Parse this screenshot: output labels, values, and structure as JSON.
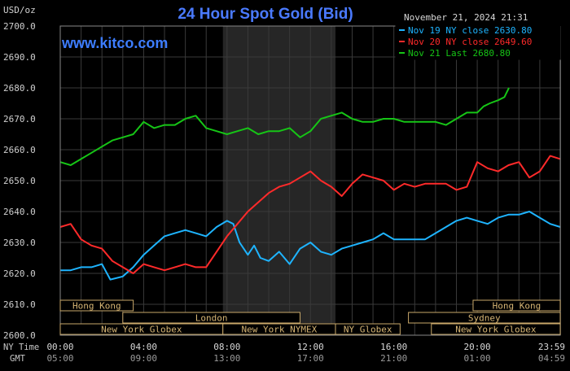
{
  "chart_data": {
    "type": "line",
    "title": "24 Hour Spot Gold (Bid)",
    "ylabel": "USD/oz",
    "timestamp": "November 21, 2024 21:31",
    "watermark": "www.kitco.com",
    "ylim": [
      2600,
      2700
    ],
    "y_ticks": [
      "2700.0",
      "2690.0",
      "2680.0",
      "2670.0",
      "2660.0",
      "2650.0",
      "2640.0",
      "2630.0",
      "2620.0",
      "2610.0",
      "2600.0"
    ],
    "x_ticks_ny": [
      "00:00",
      "04:00",
      "08:00",
      "12:00",
      "16:00",
      "20:00",
      "23:59"
    ],
    "x_ticks_gmt": [
      "05:00",
      "09:00",
      "13:00",
      "17:00",
      "21:00",
      "01:00",
      "04:59"
    ],
    "x_row_labels": [
      "NY Time",
      "GMT"
    ],
    "grid": true,
    "legend_position": "top-right",
    "series": [
      {
        "name": "Nov 19 NY close 2630.80",
        "color": "#1eb4ff",
        "x": [
          0,
          0.5,
          1,
          1.5,
          2,
          2.4,
          3,
          3.5,
          4,
          4.5,
          5,
          5.5,
          6,
          6.5,
          7,
          7.5,
          8,
          8.3,
          8.6,
          9,
          9.3,
          9.6,
          10,
          10.5,
          11,
          11.5,
          12,
          12.5,
          13,
          13.5,
          14,
          14.5,
          15,
          15.5,
          16,
          16.5,
          17,
          17.5,
          18,
          18.5,
          19,
          19.5,
          20,
          20.5,
          21,
          21.5,
          22,
          22.5,
          23,
          23.5,
          23.98
        ],
        "y": [
          2621,
          2621,
          2622,
          2622,
          2623,
          2618,
          2619,
          2622,
          2626,
          2629,
          2632,
          2633,
          2634,
          2633,
          2632,
          2635,
          2637,
          2636,
          2630,
          2626,
          2629,
          2625,
          2624,
          2627,
          2623,
          2628,
          2630,
          2627,
          2626,
          2628,
          2629,
          2630,
          2631,
          2633,
          2631,
          2631,
          2631,
          2631,
          2633,
          2635,
          2637,
          2638,
          2637,
          2636,
          2638,
          2639,
          2639,
          2640,
          2638,
          2636,
          2635
        ]
      },
      {
        "name": "Nov 20 NY close 2649.60",
        "color": "#ff2a2a",
        "x": [
          0,
          0.5,
          1,
          1.5,
          2,
          2.5,
          3,
          3.5,
          4,
          4.5,
          5,
          5.5,
          6,
          6.5,
          7,
          7.5,
          8,
          8.5,
          9,
          9.5,
          10,
          10.5,
          11,
          11.5,
          12,
          12.5,
          13,
          13.5,
          14,
          14.5,
          15,
          15.5,
          16,
          16.5,
          17,
          17.5,
          18,
          18.5,
          19,
          19.5,
          20,
          20.5,
          21,
          21.5,
          22,
          22.5,
          23,
          23.5,
          23.98
        ],
        "y": [
          2635,
          2636,
          2631,
          2629,
          2628,
          2624,
          2622,
          2620,
          2623,
          2622,
          2621,
          2622,
          2623,
          2622,
          2622,
          2627,
          2632,
          2636,
          2640,
          2643,
          2646,
          2648,
          2649,
          2651,
          2653,
          2650,
          2648,
          2645,
          2649,
          2652,
          2651,
          2650,
          2647,
          2649,
          2648,
          2649,
          2649,
          2649,
          2647,
          2648,
          2656,
          2654,
          2653,
          2655,
          2656,
          2651,
          2653,
          2658,
          2657
        ]
      },
      {
        "name": "Nov 21 Last 2680.80",
        "color": "#16c516",
        "x": [
          0,
          0.5,
          1,
          1.5,
          2,
          2.5,
          3,
          3.5,
          4,
          4.5,
          5,
          5.5,
          6,
          6.5,
          7,
          7.5,
          8,
          8.5,
          9,
          9.5,
          10,
          10.5,
          11,
          11.5,
          12,
          12.5,
          13,
          13.5,
          14,
          14.5,
          15,
          15.5,
          16,
          16.5,
          17,
          17.5,
          18,
          18.5,
          19,
          19.5,
          20,
          20.3,
          20.6,
          21,
          21.3,
          21.52
        ],
        "y": [
          2656,
          2655,
          2657,
          2659,
          2661,
          2663,
          2664,
          2665,
          2669,
          2667,
          2668,
          2668,
          2670,
          2671,
          2667,
          2666,
          2665,
          2666,
          2667,
          2665,
          2666,
          2666,
          2667,
          2664,
          2666,
          2670,
          2671,
          2672,
          2670,
          2669,
          2669,
          2670,
          2670,
          2669,
          2669,
          2669,
          2669,
          2668,
          2670,
          2672,
          2672,
          2674,
          2675,
          2676,
          2677,
          2680
        ]
      }
    ],
    "market_sessions": [
      {
        "label": "Hong Kong",
        "start": 0,
        "end": 3.5,
        "row": 1
      },
      {
        "label": "London",
        "start": 3,
        "end": 11.5,
        "row": 2
      },
      {
        "label": "New York Globex",
        "start": 0,
        "end": 7.8,
        "row": 3
      },
      {
        "label": "New York NYMEX",
        "start": 7.8,
        "end": 13.2,
        "row": 3
      },
      {
        "label": "NY Globex",
        "start": 13.2,
        "end": 16.3,
        "row": 3
      },
      {
        "label": "Hong Kong",
        "start": 19.8,
        "end": 23.98,
        "row": 1
      },
      {
        "label": "Sydney",
        "start": 16.7,
        "end": 23.98,
        "row": 2
      },
      {
        "label": "New York Globex",
        "start": 17.8,
        "end": 23.98,
        "row": 3
      }
    ],
    "shaded_region": {
      "start": 7.8,
      "end": 13.2
    }
  }
}
